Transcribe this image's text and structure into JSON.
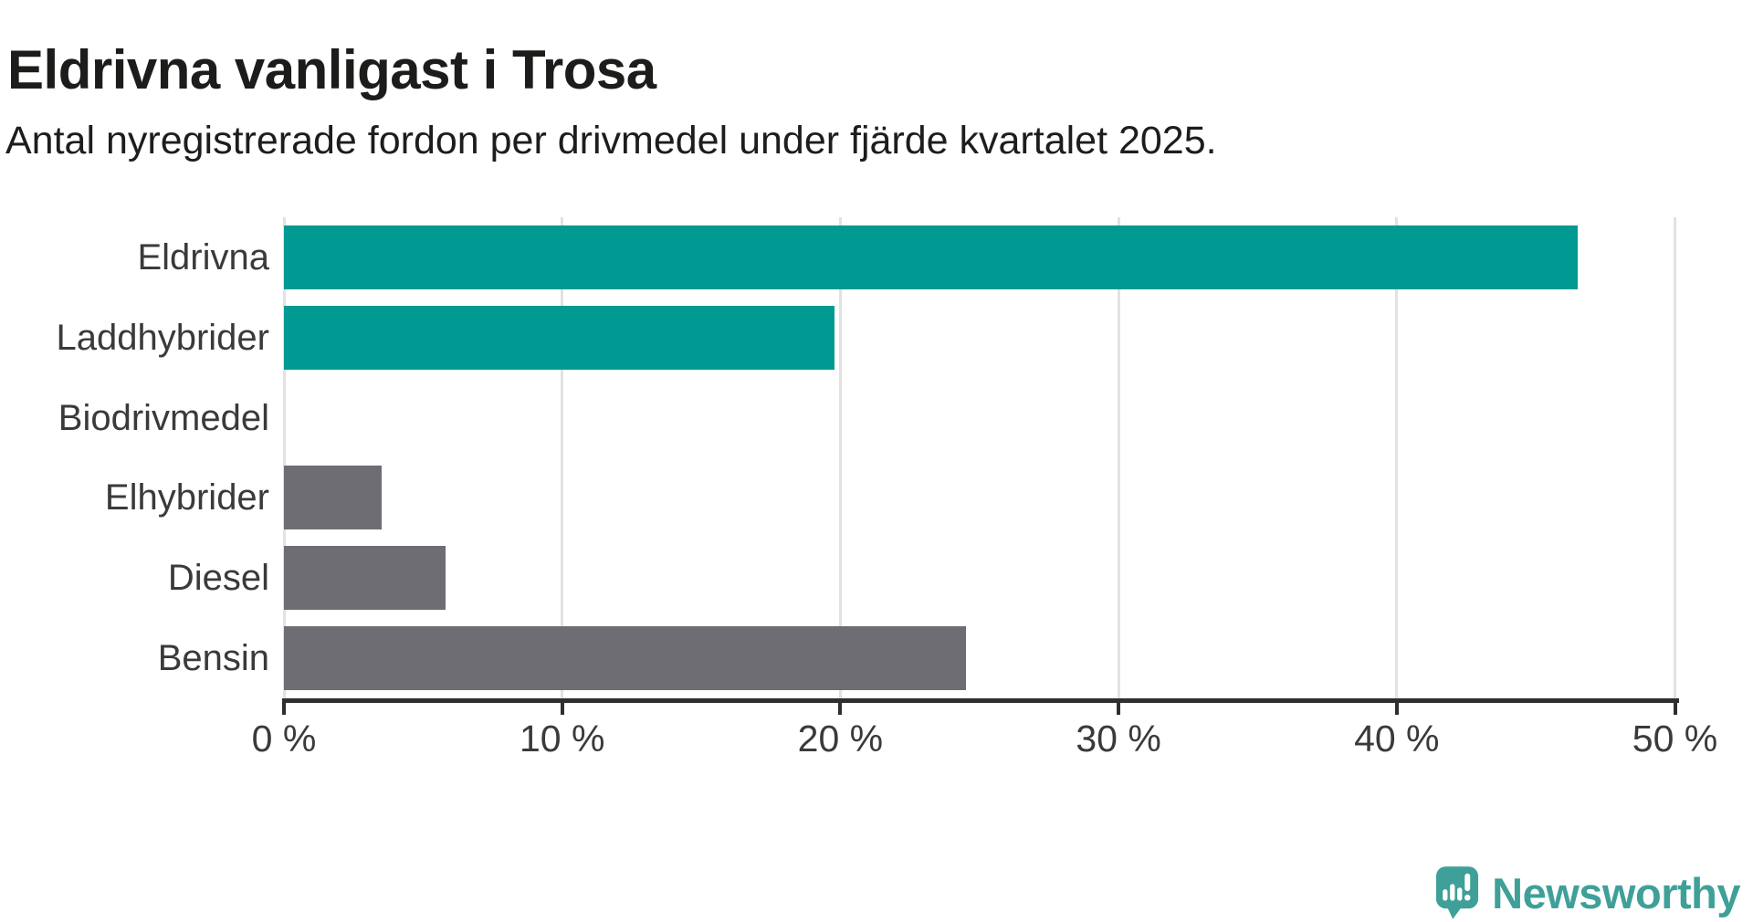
{
  "header": {
    "title": "Eldrivna vanligast i Trosa",
    "subtitle": "Antal nyregistrerade fordon per drivmedel under fjärde kvartalet 2025."
  },
  "chart_data": {
    "type": "bar",
    "orientation": "horizontal",
    "title": "Eldrivna vanligast i Trosa",
    "subtitle": "Antal nyregistrerade fordon per drivmedel under fjärde kvartalet 2025.",
    "categories": [
      "Eldrivna",
      "Laddhybrider",
      "Biodrivmedel",
      "Elhybrider",
      "Diesel",
      "Bensin"
    ],
    "values": [
      46.5,
      19.8,
      0,
      3.5,
      5.8,
      24.5
    ],
    "unit": "%",
    "xlabel": "",
    "ylabel": "",
    "xlim": [
      0,
      50
    ],
    "x_tick_labels": [
      "0 %",
      "10 %",
      "20 %",
      "30 %",
      "40 %",
      "50 %"
    ],
    "x_tick_values": [
      0,
      10,
      20,
      30,
      40,
      50
    ],
    "grid": "vertical-only",
    "legend": "none",
    "bar_colors": [
      "#009a93",
      "#009a93",
      "#6d6d73",
      "#6d6d73",
      "#6d6d73",
      "#6d6d73"
    ]
  },
  "colors": {
    "accent_teal": "#009a93",
    "neutral_gray": "#6d6d73",
    "gridline": "#e2e2e2",
    "axis": "#2f2f2f",
    "text_dark": "#1c1c1a",
    "text_gray": "#3a3a3a",
    "logo_teal": "#3fa099",
    "background": "#ffffff"
  },
  "branding": {
    "logo_text": "Newsworthy"
  }
}
